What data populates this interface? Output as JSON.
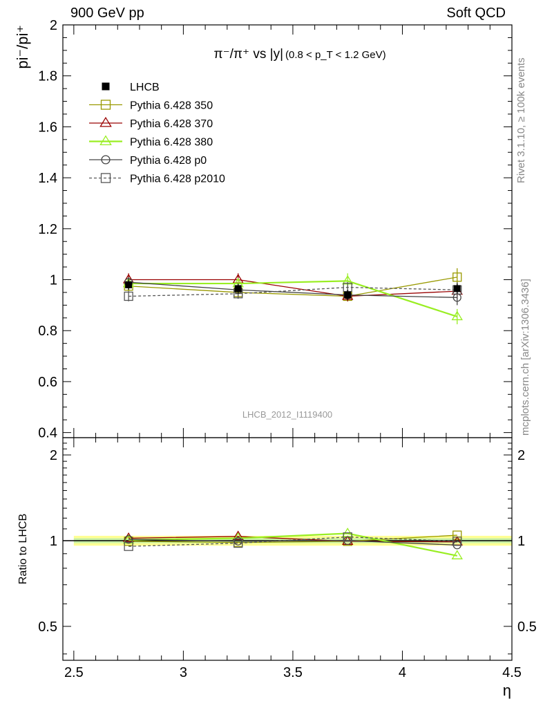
{
  "header": {
    "left": "900 GeV pp",
    "right": "Soft QCD"
  },
  "side_labels": {
    "top": "Rivet 3.1.10, ≥ 100k events",
    "bottom": "mcplots.cern.ch [arXiv:1306.3436]"
  },
  "watermark": "LHCB_2012_I1119400",
  "plot_title": {
    "main": "π⁻/π⁺ vs |y|",
    "cut": "(0.8 < p_T < 1.2 GeV)"
  },
  "chart_data": [
    {
      "type": "scatter",
      "panel": "main",
      "ylabel": "pi⁻/pi⁺",
      "xlim": [
        2.45,
        4.5
      ],
      "ylim": [
        0.38,
        2.0
      ],
      "yticks": [
        0.4,
        0.6,
        0.8,
        1,
        1.2,
        1.4,
        1.6,
        1.8,
        2
      ],
      "ytick_labels": [
        "0.4",
        "0.6",
        "0.8",
        "1",
        "1.2",
        "1.4",
        "1.6",
        "1.8",
        "2"
      ],
      "x": [
        2.75,
        3.25,
        3.75,
        4.25
      ],
      "legend_position": "top-left",
      "series": [
        {
          "name": "LHCB",
          "color": "#000000",
          "marker": "filled-square",
          "line": "none",
          "values": [
            0.98,
            0.965,
            0.94,
            0.965
          ],
          "errors": [
            0.02,
            0.02,
            0.02,
            0.02
          ]
        },
        {
          "name": "Pythia 6.428 350",
          "color": "#999900",
          "marker": "open-square",
          "line": "solid",
          "values": [
            0.975,
            0.95,
            0.935,
            1.01
          ],
          "errors": [
            0.02,
            0.02,
            0.02,
            0.035
          ]
        },
        {
          "name": "Pythia 6.428 370",
          "color": "#990000",
          "marker": "open-triangle",
          "line": "solid",
          "values": [
            1.0,
            1.0,
            0.935,
            0.955
          ],
          "errors": [
            0.025,
            0.025,
            0.02,
            0.03
          ]
        },
        {
          "name": "Pythia 6.428 380",
          "color": "#99ee22",
          "marker": "open-triangle",
          "line": "solid",
          "values": [
            0.985,
            0.985,
            0.995,
            0.855
          ],
          "errors": [
            0.025,
            0.02,
            0.03,
            0.03
          ]
        },
        {
          "name": "Pythia 6.428 p0",
          "color": "#444444",
          "marker": "open-circle",
          "line": "solid",
          "values": [
            0.99,
            0.96,
            0.94,
            0.93
          ],
          "errors": [
            0.02,
            0.02,
            0.02,
            0.03
          ]
        },
        {
          "name": "Pythia 6.428 p2010",
          "color": "#555555",
          "marker": "open-square",
          "line": "dashed",
          "values": [
            0.935,
            0.945,
            0.97,
            0.96
          ],
          "errors": [
            0.02,
            0.02,
            0.02,
            0.03
          ]
        }
      ]
    },
    {
      "type": "scatter",
      "panel": "ratio",
      "ylabel": "Ratio to LHCB",
      "xlabel": "η",
      "xlim": [
        2.45,
        4.5
      ],
      "ylim": [
        0.38,
        2.3
      ],
      "yscale": "log",
      "yticks": [
        0.5,
        1,
        2
      ],
      "ytick_labels": [
        "0.5",
        "1",
        "2"
      ],
      "xticks": [
        2.5,
        3,
        3.5,
        4,
        4.5
      ],
      "xtick_labels": [
        "2.5",
        "3",
        "3.5",
        "4",
        "4.5"
      ],
      "x": [
        2.75,
        3.25,
        3.75,
        4.25
      ],
      "reference_band": {
        "color": "#ffff66",
        "inner_color": "#bbeeaa",
        "half_width": 0.04,
        "inner_half_width": 0.02
      },
      "series": [
        {
          "name": "Pythia 6.428 350",
          "values": [
            0.995,
            0.985,
            0.995,
            1.045
          ]
        },
        {
          "name": "Pythia 6.428 370",
          "values": [
            1.02,
            1.035,
            0.995,
            0.99
          ]
        },
        {
          "name": "Pythia 6.428 380",
          "values": [
            1.005,
            1.02,
            1.06,
            0.885
          ]
        },
        {
          "name": "Pythia 6.428 p0",
          "values": [
            1.01,
            0.995,
            1.0,
            0.965
          ]
        },
        {
          "name": "Pythia 6.428 p2010",
          "values": [
            0.955,
            0.98,
            1.03,
            0.995
          ]
        }
      ]
    }
  ]
}
